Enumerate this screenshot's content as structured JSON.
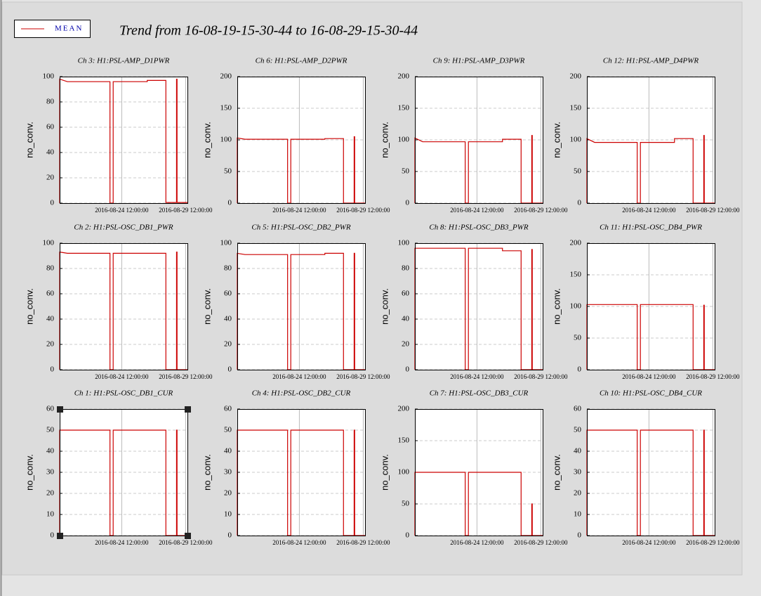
{
  "title": "Trend from 16-08-19-15-30-44 to 16-08-29-15-30-44",
  "chart_data": [
    {
      "type": "line",
      "title": "Ch 3: H1:PSL-AMP_D1PWR",
      "ylabel": "no_conv.",
      "grid": true,
      "x": [
        "2016-08-19T15:31",
        "2016-08-19T15:32",
        "2016-08-20T06:00",
        "2016-08-23T14:00",
        "2016-08-23T14:01",
        "2016-08-23T20:00",
        "2016-08-23T20:01",
        "2016-08-26T12:00",
        "2016-08-26T12:01",
        "2016-08-27T23:00",
        "2016-08-27T23:01",
        "2016-08-28T19:00",
        "2016-08-28T19:01",
        "2016-08-28T20:00",
        "2016-08-28T20:01",
        "2016-08-29T15:30"
      ],
      "xlim": [
        "2016-08-19T15:30:44",
        "2016-08-29T15:30:44"
      ],
      "xticks": [
        {
          "value": "2016-08-24T12:00:00",
          "label": "2016-08-24 12:00:00"
        },
        {
          "value": "2016-08-29T12:00:00",
          "label": "2016-08-29 12:00:00"
        }
      ],
      "ylim": [
        0,
        100
      ],
      "yticks": [
        0,
        20,
        40,
        60,
        80,
        100
      ],
      "series": [
        {
          "name": "MEAN",
          "color": "#cc0000",
          "values": [
            0,
            98,
            96,
            96,
            0,
            0,
            96,
            96,
            97,
            97,
            0.5,
            0.5,
            98,
            98,
            0.5,
            0.5
          ]
        }
      ]
    },
    {
      "type": "line",
      "title": "Ch 6: H1:PSL-AMP_D2PWR",
      "ylabel": "no_conv.",
      "grid": true,
      "x": [
        "2016-08-19T15:31",
        "2016-08-19T15:32",
        "2016-08-20T06:00",
        "2016-08-23T14:00",
        "2016-08-23T14:01",
        "2016-08-23T20:00",
        "2016-08-23T20:01",
        "2016-08-26T12:00",
        "2016-08-26T12:01",
        "2016-08-27T23:00",
        "2016-08-27T23:01",
        "2016-08-28T19:00",
        "2016-08-28T19:01",
        "2016-08-28T20:00",
        "2016-08-28T20:01",
        "2016-08-29T15:30"
      ],
      "xlim": [
        "2016-08-19T15:30:44",
        "2016-08-29T15:30:44"
      ],
      "xticks": [
        {
          "value": "2016-08-24T12:00:00",
          "label": "2016-08-24 12:00:00"
        },
        {
          "value": "2016-08-29T12:00:00",
          "label": "2016-08-29 12:00:00"
        }
      ],
      "ylim": [
        0,
        200
      ],
      "yticks": [
        0,
        50,
        100,
        150,
        200
      ],
      "series": [
        {
          "name": "MEAN",
          "color": "#cc0000",
          "values": [
            0,
            103,
            101,
            101,
            0,
            0,
            101,
            101,
            102,
            102,
            0,
            0,
            105,
            105,
            0,
            0
          ]
        }
      ]
    },
    {
      "type": "line",
      "title": "Ch 9: H1:PSL-AMP_D3PWR",
      "ylabel": "no_conv.",
      "grid": true,
      "x": [
        "2016-08-19T15:31",
        "2016-08-19T15:32",
        "2016-08-20T06:00",
        "2016-08-23T14:00",
        "2016-08-23T14:01",
        "2016-08-23T20:00",
        "2016-08-23T20:01",
        "2016-08-26T12:00",
        "2016-08-26T12:01",
        "2016-08-27T23:00",
        "2016-08-27T23:01",
        "2016-08-28T19:00",
        "2016-08-28T19:01",
        "2016-08-28T20:00",
        "2016-08-28T20:01",
        "2016-08-29T15:30"
      ],
      "xlim": [
        "2016-08-19T15:30:44",
        "2016-08-29T15:30:44"
      ],
      "xticks": [
        {
          "value": "2016-08-24T12:00:00",
          "label": "2016-08-24 12:00:00"
        },
        {
          "value": "2016-08-29T12:00:00",
          "label": "2016-08-29 12:00:00"
        }
      ],
      "ylim": [
        0,
        200
      ],
      "yticks": [
        0,
        50,
        100,
        150,
        200
      ],
      "series": [
        {
          "name": "MEAN",
          "color": "#cc0000",
          "values": [
            0,
            103,
            97,
            97,
            0,
            0,
            97,
            97,
            101,
            101,
            0,
            0,
            107,
            107,
            0,
            0
          ]
        }
      ]
    },
    {
      "type": "line",
      "title": "Ch 12: H1:PSL-AMP_D4PWR",
      "ylabel": "no_conv.",
      "grid": true,
      "x": [
        "2016-08-19T15:31",
        "2016-08-19T15:32",
        "2016-08-20T06:00",
        "2016-08-23T14:00",
        "2016-08-23T14:01",
        "2016-08-23T20:00",
        "2016-08-23T20:01",
        "2016-08-26T12:00",
        "2016-08-26T12:01",
        "2016-08-27T23:00",
        "2016-08-27T23:01",
        "2016-08-28T19:00",
        "2016-08-28T19:01",
        "2016-08-28T20:00",
        "2016-08-28T20:01",
        "2016-08-29T15:30"
      ],
      "xlim": [
        "2016-08-19T15:30:44",
        "2016-08-29T15:30:44"
      ],
      "xticks": [
        {
          "value": "2016-08-24T12:00:00",
          "label": "2016-08-24 12:00:00"
        },
        {
          "value": "2016-08-29T12:00:00",
          "label": "2016-08-29 12:00:00"
        }
      ],
      "ylim": [
        0,
        200
      ],
      "yticks": [
        0,
        50,
        100,
        150,
        200
      ],
      "series": [
        {
          "name": "MEAN",
          "color": "#cc0000",
          "values": [
            0,
            102,
            96,
            96,
            0,
            0,
            96,
            96,
            102,
            102,
            0,
            0,
            107,
            107,
            0,
            0
          ]
        }
      ]
    },
    {
      "type": "line",
      "title": "Ch 2: H1:PSL-OSC_DB1_PWR",
      "ylabel": "no_conv.",
      "grid": true,
      "x": [
        "2016-08-19T15:31",
        "2016-08-19T15:32",
        "2016-08-20T06:00",
        "2016-08-23T14:00",
        "2016-08-23T14:01",
        "2016-08-23T20:00",
        "2016-08-23T20:01",
        "2016-08-26T12:00",
        "2016-08-26T12:01",
        "2016-08-27T23:00",
        "2016-08-27T23:01",
        "2016-08-28T19:00",
        "2016-08-28T19:01",
        "2016-08-28T20:00",
        "2016-08-28T20:01",
        "2016-08-29T15:30"
      ],
      "xlim": [
        "2016-08-19T15:30:44",
        "2016-08-29T15:30:44"
      ],
      "xticks": [
        {
          "value": "2016-08-24T12:00:00",
          "label": "2016-08-24 12:00:00"
        },
        {
          "value": "2016-08-29T12:00:00",
          "label": "2016-08-29 12:00:00"
        }
      ],
      "ylim": [
        0,
        100
      ],
      "yticks": [
        0,
        20,
        40,
        60,
        80,
        100
      ],
      "series": [
        {
          "name": "MEAN",
          "color": "#cc0000",
          "values": [
            0,
            93,
            92,
            92,
            0,
            0,
            92,
            92,
            92,
            92,
            0,
            0,
            93,
            93,
            0,
            0
          ]
        }
      ]
    },
    {
      "type": "line",
      "title": "Ch 5: H1:PSL-OSC_DB2_PWR",
      "ylabel": "no_conv.",
      "grid": true,
      "x": [
        "2016-08-19T15:31",
        "2016-08-19T15:32",
        "2016-08-20T06:00",
        "2016-08-23T14:00",
        "2016-08-23T14:01",
        "2016-08-23T20:00",
        "2016-08-23T20:01",
        "2016-08-26T12:00",
        "2016-08-26T12:01",
        "2016-08-27T23:00",
        "2016-08-27T23:01",
        "2016-08-28T19:00",
        "2016-08-28T19:01",
        "2016-08-28T20:00",
        "2016-08-28T20:01",
        "2016-08-29T15:30"
      ],
      "xlim": [
        "2016-08-19T15:30:44",
        "2016-08-29T15:30:44"
      ],
      "xticks": [
        {
          "value": "2016-08-24T12:00:00",
          "label": "2016-08-24 12:00:00"
        },
        {
          "value": "2016-08-29T12:00:00",
          "label": "2016-08-29 12:00:00"
        }
      ],
      "ylim": [
        0,
        100
      ],
      "yticks": [
        0,
        20,
        40,
        60,
        80,
        100
      ],
      "series": [
        {
          "name": "MEAN",
          "color": "#cc0000",
          "values": [
            0,
            92,
            91,
            91,
            0,
            0,
            91,
            91,
            92,
            92,
            0,
            0,
            92,
            92,
            0,
            0
          ]
        }
      ]
    },
    {
      "type": "line",
      "title": "Ch 8: H1:PSL-OSC_DB3_PWR",
      "ylabel": "no_conv.",
      "grid": true,
      "x": [
        "2016-08-19T15:31",
        "2016-08-19T15:32",
        "2016-08-20T06:00",
        "2016-08-23T14:00",
        "2016-08-23T14:01",
        "2016-08-23T20:00",
        "2016-08-23T20:01",
        "2016-08-26T12:00",
        "2016-08-26T12:01",
        "2016-08-27T23:00",
        "2016-08-27T23:01",
        "2016-08-28T19:00",
        "2016-08-28T19:01",
        "2016-08-28T20:00",
        "2016-08-28T20:01",
        "2016-08-29T15:30"
      ],
      "xlim": [
        "2016-08-19T15:30:44",
        "2016-08-29T15:30:44"
      ],
      "xticks": [
        {
          "value": "2016-08-24T12:00:00",
          "label": "2016-08-24 12:00:00"
        },
        {
          "value": "2016-08-29T12:00:00",
          "label": "2016-08-29 12:00:00"
        }
      ],
      "ylim": [
        0,
        100
      ],
      "yticks": [
        0,
        20,
        40,
        60,
        80,
        100
      ],
      "series": [
        {
          "name": "MEAN",
          "color": "#cc0000",
          "values": [
            0,
            96,
            96,
            96,
            0,
            0,
            96,
            96,
            94,
            94,
            0,
            0,
            95,
            95,
            0,
            0
          ]
        }
      ]
    },
    {
      "type": "line",
      "title": "Ch 11: H1:PSL-OSC_DB4_PWR",
      "ylabel": "no_conv.",
      "grid": true,
      "x": [
        "2016-08-19T15:31",
        "2016-08-19T15:32",
        "2016-08-20T06:00",
        "2016-08-23T14:00",
        "2016-08-23T14:01",
        "2016-08-23T20:00",
        "2016-08-23T20:01",
        "2016-08-26T12:00",
        "2016-08-26T12:01",
        "2016-08-27T23:00",
        "2016-08-27T23:01",
        "2016-08-28T19:00",
        "2016-08-28T19:01",
        "2016-08-28T20:00",
        "2016-08-28T20:01",
        "2016-08-29T15:30"
      ],
      "xlim": [
        "2016-08-19T15:30:44",
        "2016-08-29T15:30:44"
      ],
      "xticks": [
        {
          "value": "2016-08-24T12:00:00",
          "label": "2016-08-24 12:00:00"
        },
        {
          "value": "2016-08-29T12:00:00",
          "label": "2016-08-29 12:00:00"
        }
      ],
      "ylim": [
        0,
        200
      ],
      "yticks": [
        0,
        50,
        100,
        150,
        200
      ],
      "series": [
        {
          "name": "MEAN",
          "color": "#cc0000",
          "values": [
            0,
            103,
            103,
            103,
            0,
            0,
            103,
            103,
            103,
            103,
            0,
            0,
            102,
            102,
            0,
            0
          ]
        }
      ]
    },
    {
      "type": "line",
      "title": "Ch 1: H1:PSL-OSC_DB1_CUR",
      "ylabel": "no_conv.",
      "grid": true,
      "x": [
        "2016-08-19T15:31",
        "2016-08-19T15:32",
        "2016-08-20T06:00",
        "2016-08-23T14:00",
        "2016-08-23T14:01",
        "2016-08-23T20:00",
        "2016-08-23T20:01",
        "2016-08-26T12:00",
        "2016-08-26T12:01",
        "2016-08-27T23:00",
        "2016-08-27T23:01",
        "2016-08-28T19:00",
        "2016-08-28T19:01",
        "2016-08-28T20:00",
        "2016-08-28T20:01",
        "2016-08-29T15:30"
      ],
      "xlim": [
        "2016-08-19T15:30:44",
        "2016-08-29T15:30:44"
      ],
      "xticks": [
        {
          "value": "2016-08-24T12:00:00",
          "label": "2016-08-24 12:00:00"
        },
        {
          "value": "2016-08-29T12:00:00",
          "label": "2016-08-29 12:00:00"
        }
      ],
      "ylim": [
        0,
        60
      ],
      "yticks": [
        0,
        10,
        20,
        30,
        40,
        50,
        60
      ],
      "series": [
        {
          "name": "MEAN",
          "color": "#cc0000",
          "values": [
            0,
            50,
            50,
            50,
            0,
            0,
            50,
            50,
            50,
            50,
            0,
            0,
            50,
            50,
            0,
            0
          ]
        }
      ]
    },
    {
      "type": "line",
      "title": "Ch 4: H1:PSL-OSC_DB2_CUR",
      "ylabel": "no_conv.",
      "grid": true,
      "x": [
        "2016-08-19T15:31",
        "2016-08-19T15:32",
        "2016-08-20T06:00",
        "2016-08-23T14:00",
        "2016-08-23T14:01",
        "2016-08-23T20:00",
        "2016-08-23T20:01",
        "2016-08-26T12:00",
        "2016-08-26T12:01",
        "2016-08-27T23:00",
        "2016-08-27T23:01",
        "2016-08-28T19:00",
        "2016-08-28T19:01",
        "2016-08-28T20:00",
        "2016-08-28T20:01",
        "2016-08-29T15:30"
      ],
      "xlim": [
        "2016-08-19T15:30:44",
        "2016-08-29T15:30:44"
      ],
      "xticks": [
        {
          "value": "2016-08-24T12:00:00",
          "label": "2016-08-24 12:00:00"
        },
        {
          "value": "2016-08-29T12:00:00",
          "label": "2016-08-29 12:00:00"
        }
      ],
      "ylim": [
        0,
        60
      ],
      "yticks": [
        0,
        10,
        20,
        30,
        40,
        50,
        60
      ],
      "series": [
        {
          "name": "MEAN",
          "color": "#cc0000",
          "values": [
            0,
            50,
            50,
            50,
            0,
            0,
            50,
            50,
            50,
            50,
            0,
            0,
            50,
            50,
            0,
            0
          ]
        }
      ]
    },
    {
      "type": "line",
      "title": "Ch 7: H1:PSL-OSC_DB3_CUR",
      "ylabel": "no_conv.",
      "grid": true,
      "x": [
        "2016-08-19T15:31",
        "2016-08-19T15:32",
        "2016-08-20T06:00",
        "2016-08-23T14:00",
        "2016-08-23T14:01",
        "2016-08-23T20:00",
        "2016-08-23T20:01",
        "2016-08-26T12:00",
        "2016-08-26T12:01",
        "2016-08-27T23:00",
        "2016-08-27T23:01",
        "2016-08-28T19:00",
        "2016-08-28T19:01",
        "2016-08-28T20:00",
        "2016-08-28T20:01",
        "2016-08-29T15:30"
      ],
      "xlim": [
        "2016-08-19T15:30:44",
        "2016-08-29T15:30:44"
      ],
      "xticks": [
        {
          "value": "2016-08-24T12:00:00",
          "label": "2016-08-24 12:00:00"
        },
        {
          "value": "2016-08-29T12:00:00",
          "label": "2016-08-29 12:00:00"
        }
      ],
      "ylim": [
        0,
        200
      ],
      "yticks": [
        0,
        50,
        100,
        150,
        200
      ],
      "series": [
        {
          "name": "MEAN",
          "color": "#cc0000",
          "values": [
            0,
            100,
            100,
            100,
            0,
            0,
            100,
            100,
            100,
            100,
            0,
            0,
            50,
            50,
            0,
            0
          ]
        }
      ]
    },
    {
      "type": "line",
      "title": "Ch 10: H1:PSL-OSC_DB4_CUR",
      "ylabel": "no_conv.",
      "grid": true,
      "x": [
        "2016-08-19T15:31",
        "2016-08-19T15:32",
        "2016-08-20T06:00",
        "2016-08-23T14:00",
        "2016-08-23T14:01",
        "2016-08-23T20:00",
        "2016-08-23T20:01",
        "2016-08-26T12:00",
        "2016-08-26T12:01",
        "2016-08-27T23:00",
        "2016-08-27T23:01",
        "2016-08-28T19:00",
        "2016-08-28T19:01",
        "2016-08-28T20:00",
        "2016-08-28T20:01",
        "2016-08-29T15:30"
      ],
      "xlim": [
        "2016-08-19T15:30:44",
        "2016-08-29T15:30:44"
      ],
      "xticks": [
        {
          "value": "2016-08-24T12:00:00",
          "label": "2016-08-24 12:00:00"
        },
        {
          "value": "2016-08-29T12:00:00",
          "label": "2016-08-29 12:00:00"
        }
      ],
      "ylim": [
        0,
        60
      ],
      "yticks": [
        0,
        10,
        20,
        30,
        40,
        50,
        60
      ],
      "series": [
        {
          "name": "MEAN",
          "color": "#cc0000",
          "values": [
            0,
            50,
            50,
            50,
            0,
            0,
            50,
            50,
            50,
            50,
            0,
            0,
            50,
            50,
            0,
            0
          ]
        }
      ]
    }
  ]
}
